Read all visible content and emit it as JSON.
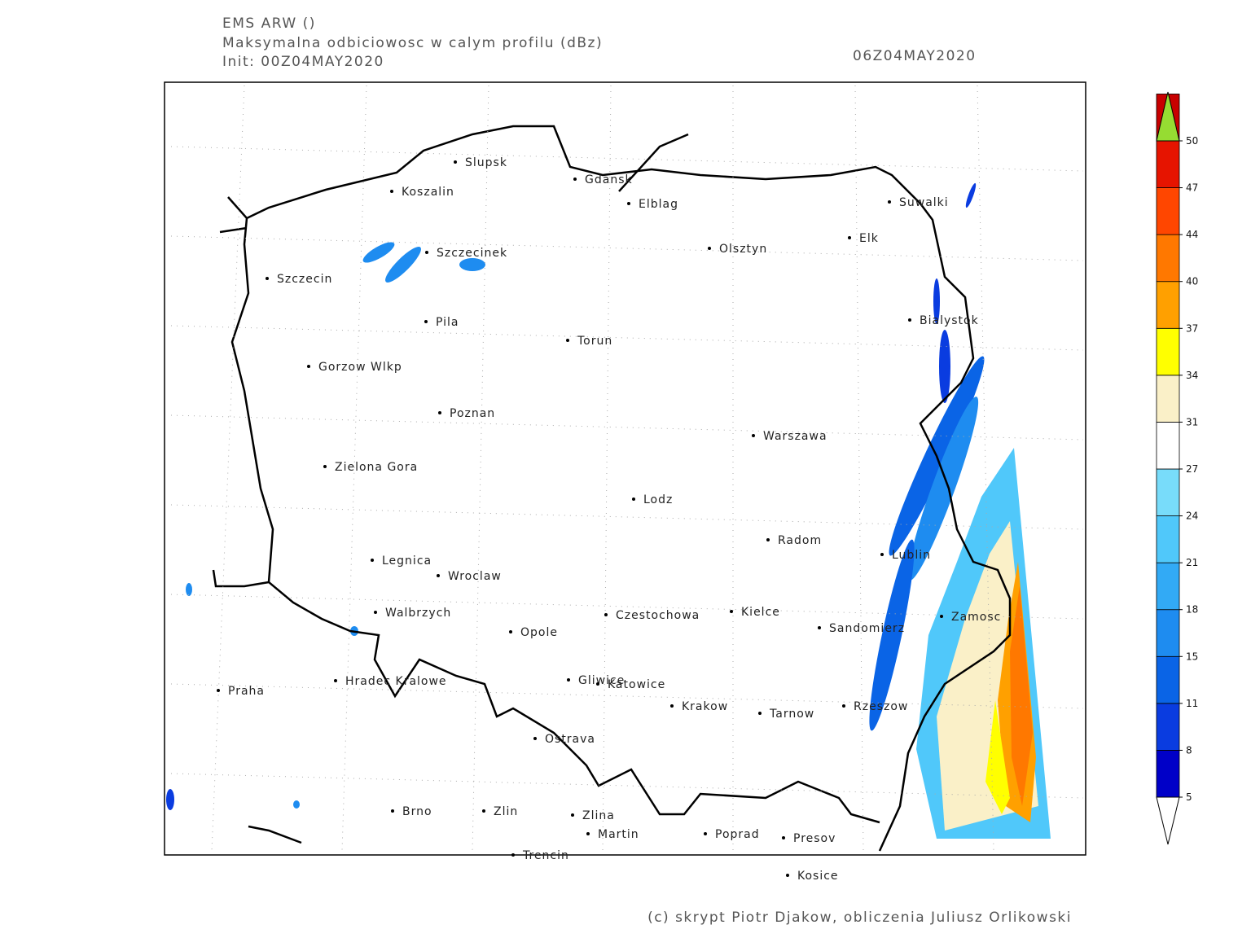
{
  "header": {
    "model": "EMS ARW ()",
    "field": "Maksymalna odbiciowosc w calym profilu (dBz)",
    "init": "Init: 00Z04MAY2020",
    "valid": "06Z04MAY2020"
  },
  "cities": [
    "Slupsk",
    "Koszalin",
    "Gdansk",
    "Elblag",
    "Suwalki",
    "Elk",
    "Olsztyn",
    "Szczecinek",
    "Szczecin",
    "Bialystok",
    "Pila",
    "Torun",
    "Gorzow Wlkp",
    "Poznan",
    "Warszawa",
    "Zielona Gora",
    "Lodz",
    "Radom",
    "Lublin",
    "Legnica",
    "Wroclaw",
    "Walbrzych",
    "Czestochowa",
    "Kielce",
    "Zamosc",
    "Sandomierz",
    "Opole",
    "Praha",
    "Hradec Kralowe",
    "Gliwice",
    "Katowice",
    "Krakow",
    "Tarnow",
    "Rzeszow",
    "Ostrava",
    "Brno",
    "Zlin",
    "Zlina",
    "Martin",
    "Poprad",
    "Presov",
    "Trencin",
    "Kosice"
  ],
  "colorbar": {
    "levels": [
      5,
      8,
      11,
      15,
      18,
      21,
      24,
      27,
      31,
      34,
      37,
      40,
      44,
      47,
      50
    ],
    "colors": [
      "#0000c8",
      "#0a3ce0",
      "#0a64e6",
      "#1e8cf0",
      "#32aaf5",
      "#50c8fa",
      "#78dcfa",
      "#ffffff",
      "#faf0c8",
      "#ffff00",
      "#ffa000",
      "#ff7800",
      "#ff4600",
      "#e61400",
      "#c80000"
    ],
    "over_color": "#96dc32",
    "under_color": "#ffffff"
  },
  "footer": "(c) skrypt Piotr Djakow, obliczenia Juliusz Orlikowski"
}
